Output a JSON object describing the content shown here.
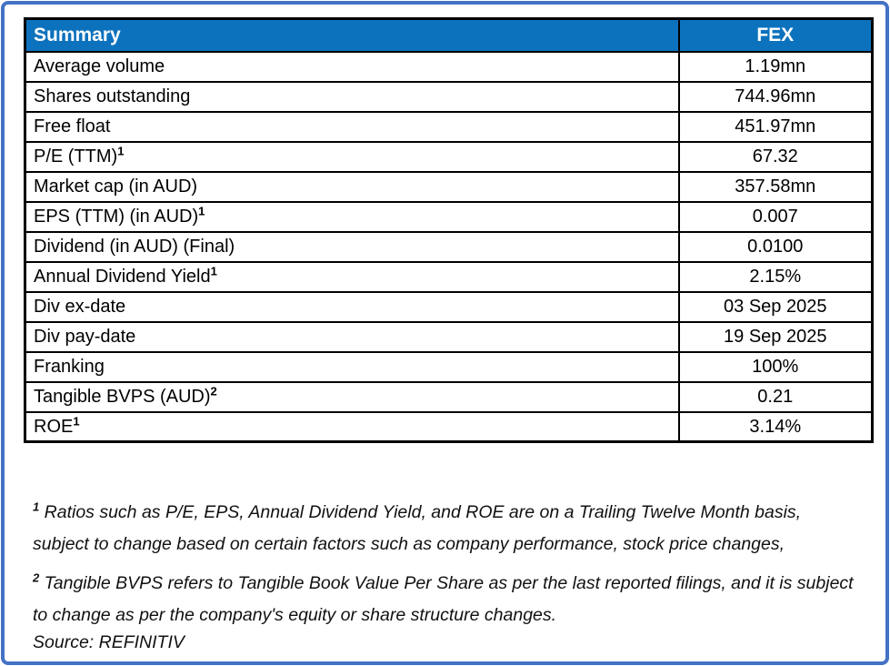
{
  "colors": {
    "frame_border": "#4472C4",
    "header_bg": "#0D72BD",
    "header_text": "#FFFFFF",
    "table_border": "#000000"
  },
  "table": {
    "header": {
      "label": "Summary",
      "value_col": "FEX"
    },
    "rows": [
      {
        "label": "Average volume",
        "sup": "",
        "value": "1.19mn"
      },
      {
        "label": "Shares outstanding",
        "sup": "",
        "value": "744.96mn"
      },
      {
        "label": "Free float",
        "sup": "",
        "value": "451.97mn"
      },
      {
        "label": "P/E (TTM)",
        "sup": "1",
        "value": "67.32"
      },
      {
        "label": "Market cap (in AUD)",
        "sup": "",
        "value": "357.58mn"
      },
      {
        "label": "EPS (TTM) (in AUD)",
        "sup": "1",
        "value": "0.007"
      },
      {
        "label": "Dividend (in AUD) (Final)",
        "sup": "",
        "value": "0.0100"
      },
      {
        "label": "Annual Dividend Yield",
        "sup": "1",
        "value": "2.15%"
      },
      {
        "label": "Div ex-date",
        "sup": "",
        "value": "03 Sep 2025"
      },
      {
        "label": "Div pay-date",
        "sup": "",
        "value": "19 Sep 2025"
      },
      {
        "label": "Franking",
        "sup": "",
        "value": "100%"
      },
      {
        "label": "Tangible BVPS (AUD)",
        "sup": "2",
        "value": "0.21"
      },
      {
        "label": "ROE",
        "sup": "1",
        "value": "3.14%"
      }
    ]
  },
  "footnotes": [
    {
      "sup": "1",
      "text": "Ratios such as P/E, EPS, Annual Dividend Yield, and ROE are on a Trailing Twelve Month basis, subject to change based on certain factors such as company performance, stock price changes,"
    },
    {
      "sup": "2",
      "text": "Tangible BVPS refers to Tangible Book Value Per Share as per the last reported filings, and it is subject to change as per the company's equity or share structure changes."
    }
  ],
  "source": "Source: REFINITIV"
}
